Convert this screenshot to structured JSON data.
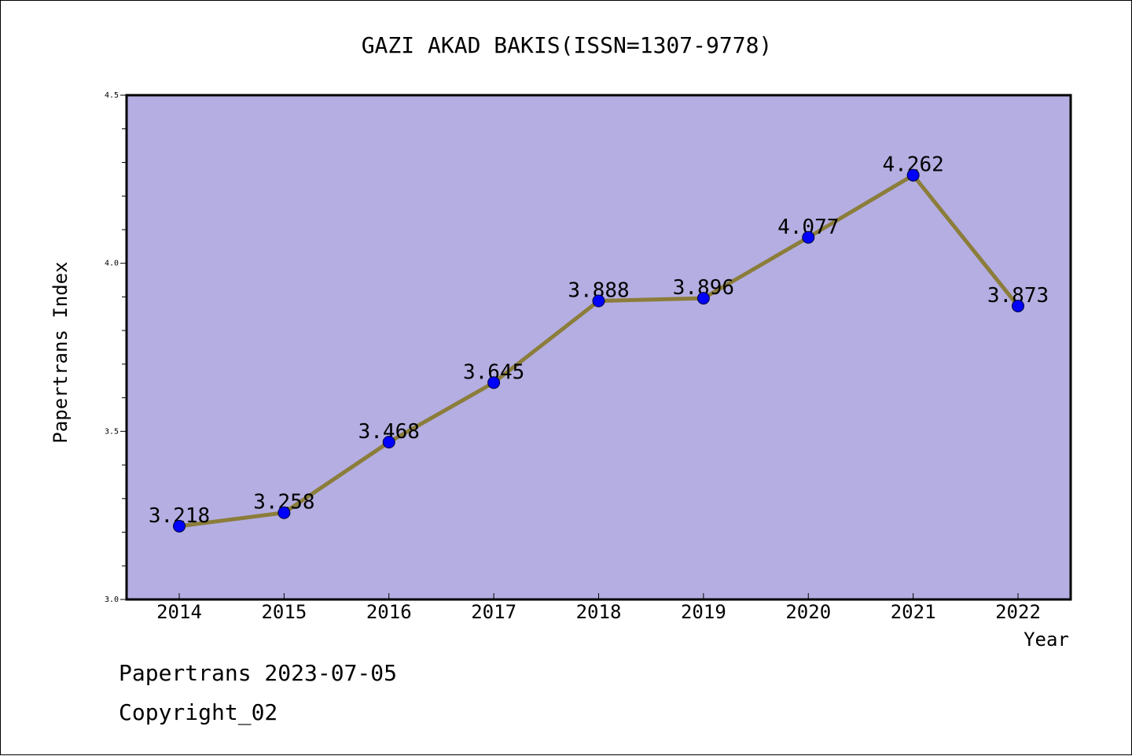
{
  "chart_data": {
    "type": "line",
    "title": "GAZI AKAD BAKIS(ISSN=1307-9778)",
    "xlabel": "Year",
    "ylabel": "Papertrans Index",
    "categories": [
      "2014",
      "2015",
      "2016",
      "2017",
      "2018",
      "2019",
      "2020",
      "2021",
      "2022"
    ],
    "series": [
      {
        "values": [
          3.218,
          3.258,
          3.468,
          3.645,
          3.888,
          3.896,
          4.077,
          4.262,
          3.873
        ],
        "labels": [
          "3.218",
          "3.258",
          "3.468",
          "3.645",
          "3.888",
          "3.896",
          "4.077",
          "4.262",
          "3.873"
        ],
        "line_color": "#8b7d3a",
        "marker_color": "#0000ff"
      }
    ],
    "ylim": [
      3.0,
      4.5
    ],
    "yticks": [
      "3.0",
      "3.5",
      "4.0",
      "4.5"
    ],
    "plot_background": "#b4aee2",
    "grid": false,
    "legend": "none"
  },
  "footer": {
    "source": "Papertrans 2023-07-05",
    "copyright": "Copyright_02"
  }
}
